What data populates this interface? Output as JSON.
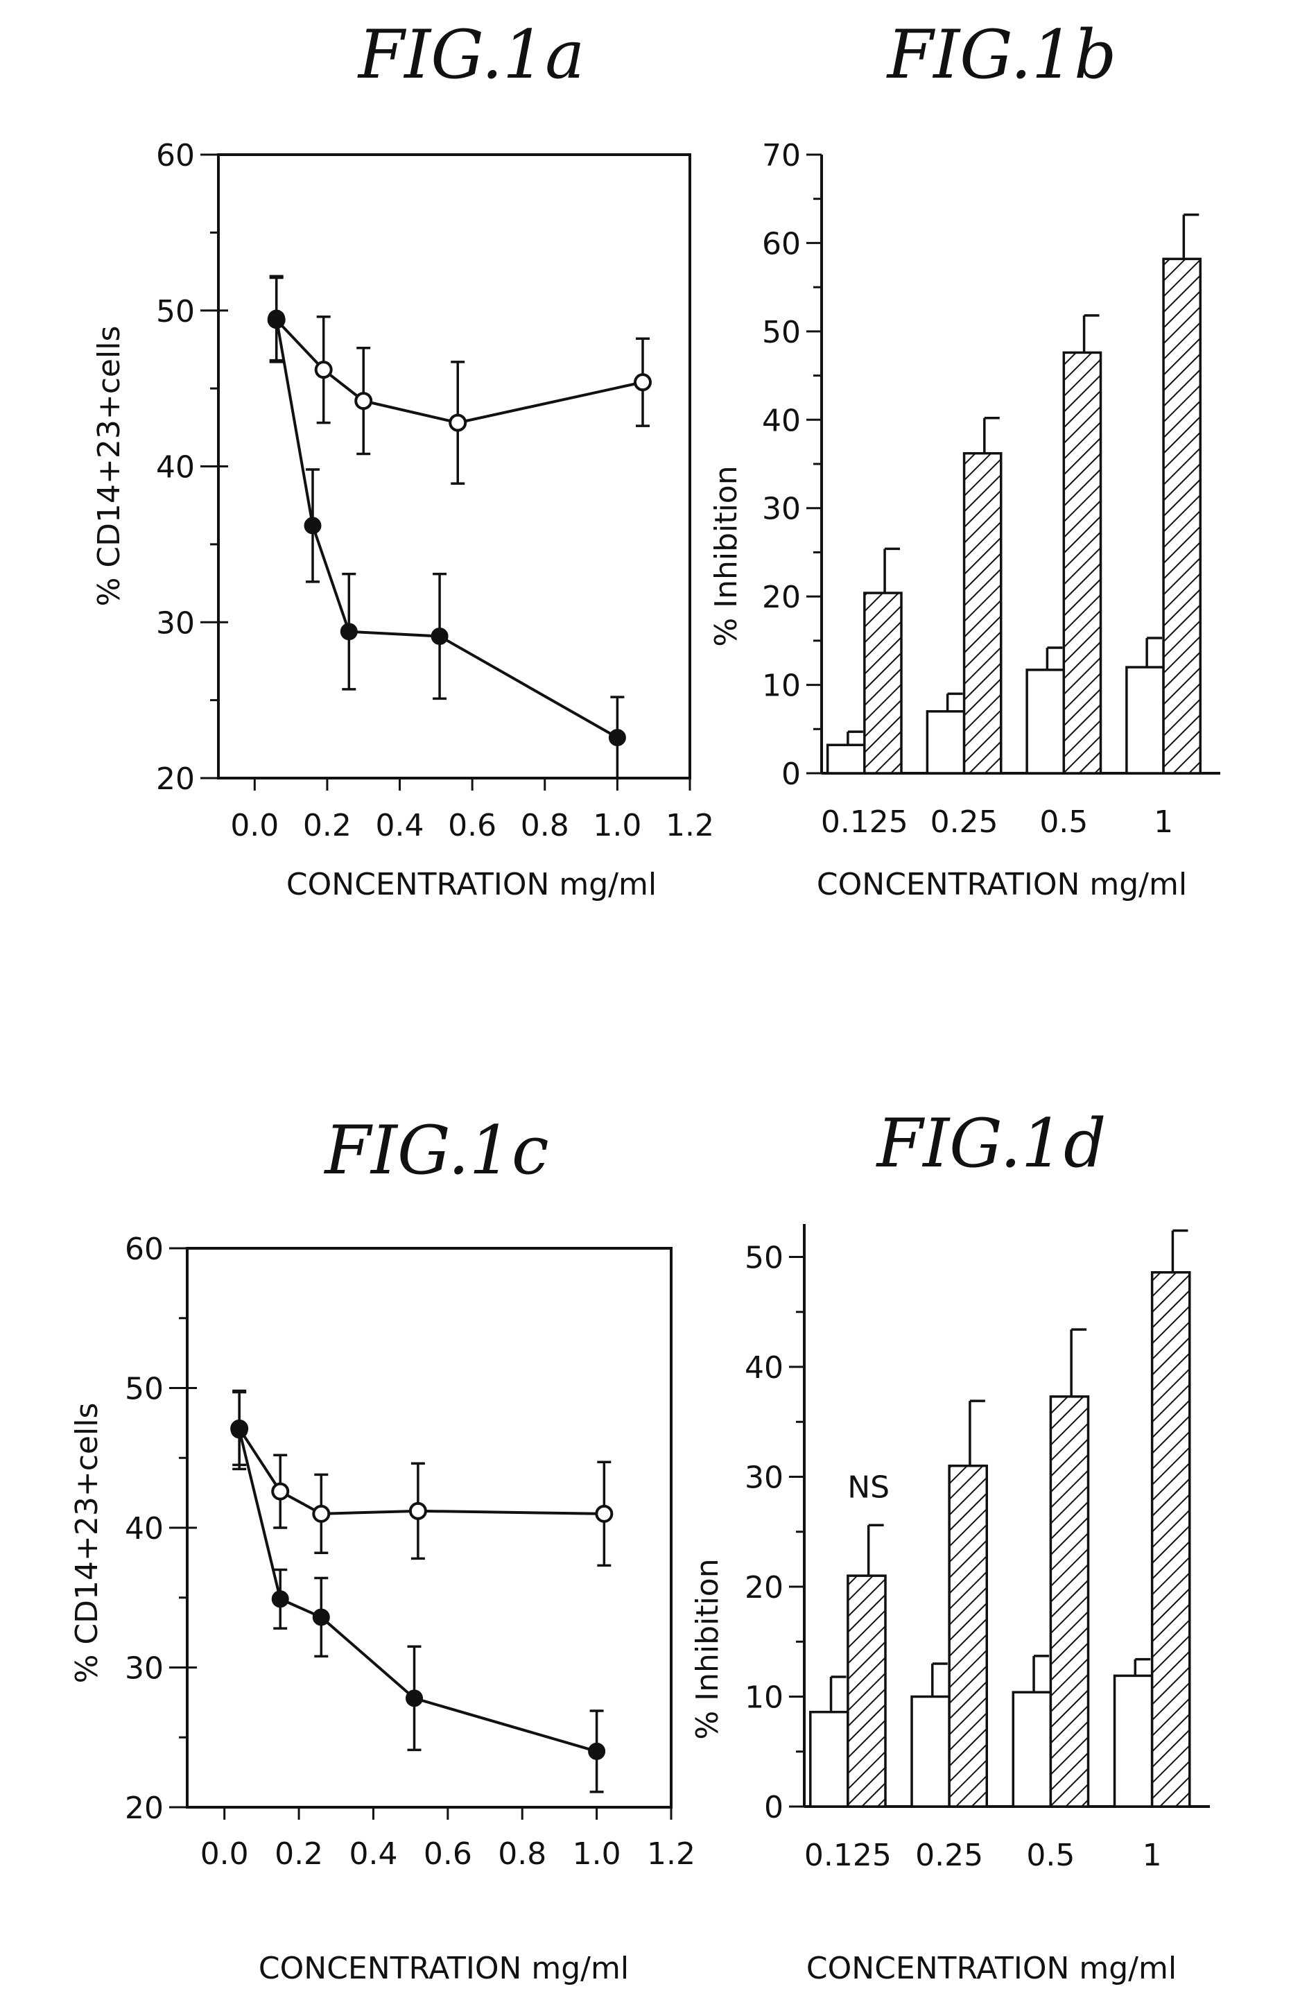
{
  "chart_data": [
    {
      "id": "fig1a",
      "type": "line",
      "title": "FIG.1a",
      "xlabel": "CONCENTRATION mg/ml",
      "ylabel": "% CD14+23+cells",
      "xlim": [
        -0.1,
        1.2
      ],
      "ylim": [
        20,
        60
      ],
      "xticks": [
        0.0,
        0.2,
        0.4,
        0.6,
        0.8,
        1.0,
        1.2
      ],
      "xtick_labels": [
        "0.0",
        "0.2",
        "0.4",
        "0.6",
        "0.8",
        "1.0",
        "1.2"
      ],
      "yticks": [
        20,
        30,
        40,
        50,
        60
      ],
      "ytick_labels": [
        "20",
        "30",
        "40",
        "50",
        "60"
      ],
      "box": true,
      "series": [
        {
          "marker": "open",
          "x": [
            0.06,
            0.19,
            0.3,
            0.56,
            1.07
          ],
          "y": [
            49.4,
            46.2,
            44.2,
            42.8,
            45.4
          ],
          "err": [
            2.7,
            3.4,
            3.4,
            3.9,
            2.8
          ]
        },
        {
          "marker": "filled",
          "x": [
            0.06,
            0.16,
            0.26,
            0.51,
            1.0
          ],
          "y": [
            49.5,
            36.2,
            29.4,
            29.1,
            22.6
          ],
          "err": [
            2.7,
            3.6,
            3.7,
            4.0,
            2.6
          ]
        }
      ]
    },
    {
      "id": "fig1b",
      "type": "bar",
      "title": "FIG.1b",
      "xlabel": "CONCENTRATION mg/ml",
      "ylabel": "% Inhibition",
      "ylim": [
        0,
        70
      ],
      "yticks": [
        0,
        10,
        20,
        30,
        40,
        50,
        60,
        70
      ],
      "ytick_labels": [
        "0",
        "10",
        "20",
        "30",
        "40",
        "50",
        "60",
        "70"
      ],
      "categories": [
        "0.125",
        "0.25",
        "0.5",
        "1"
      ],
      "series": [
        {
          "fill": "open",
          "values": [
            3.2,
            7.0,
            11.7,
            12.0
          ],
          "err": [
            1.5,
            2.0,
            2.5,
            3.3
          ]
        },
        {
          "fill": "hatched",
          "values": [
            20.4,
            36.2,
            47.6,
            58.2
          ],
          "err": [
            5.0,
            4.0,
            4.2,
            5.0
          ]
        }
      ]
    },
    {
      "id": "fig1c",
      "type": "line",
      "title": "FIG.1c",
      "xlabel": "CONCENTRATION mg/ml",
      "ylabel": "% CD14+23+cells",
      "xlim": [
        -0.1,
        1.2
      ],
      "ylim": [
        20,
        60
      ],
      "xticks": [
        0.0,
        0.2,
        0.4,
        0.6,
        0.8,
        1.0,
        1.2
      ],
      "xtick_labels": [
        "0.0",
        "0.2",
        "0.4",
        "0.6",
        "0.8",
        "1.0",
        "1.2"
      ],
      "yticks": [
        20,
        30,
        40,
        50,
        60
      ],
      "ytick_labels": [
        "20",
        "30",
        "40",
        "50",
        "60"
      ],
      "box": true,
      "series": [
        {
          "marker": "open",
          "x": [
            0.04,
            0.15,
            0.26,
            0.52,
            1.02
          ],
          "y": [
            47.1,
            42.6,
            41.0,
            41.2,
            41.0
          ],
          "err": [
            2.6,
            2.6,
            2.8,
            3.4,
            3.7
          ]
        },
        {
          "marker": "filled",
          "x": [
            0.04,
            0.15,
            0.26,
            0.51,
            1.0
          ],
          "y": [
            47.0,
            34.9,
            33.6,
            27.8,
            24.0
          ],
          "err": [
            2.8,
            2.1,
            2.8,
            3.7,
            2.9
          ]
        }
      ]
    },
    {
      "id": "fig1d",
      "type": "bar",
      "title": "FIG.1d",
      "xlabel": "CONCENTRATION mg/ml",
      "ylabel": "% Inhibition",
      "ylim": [
        0,
        53
      ],
      "yticks": [
        0,
        10,
        20,
        30,
        40,
        50
      ],
      "ytick_labels": [
        "0",
        "10",
        "20",
        "30",
        "40",
        "50"
      ],
      "categories": [
        "0.125",
        "0.25",
        "0.5",
        "1"
      ],
      "annotation": {
        "category": "0.125",
        "text": "NS"
      },
      "series": [
        {
          "fill": "open",
          "values": [
            8.6,
            10.0,
            10.4,
            11.9
          ],
          "err": [
            3.2,
            3.0,
            3.3,
            1.5
          ]
        },
        {
          "fill": "hatched",
          "values": [
            21.0,
            31.0,
            37.3,
            48.6
          ],
          "err": [
            4.6,
            5.9,
            6.1,
            3.8
          ]
        }
      ]
    }
  ]
}
